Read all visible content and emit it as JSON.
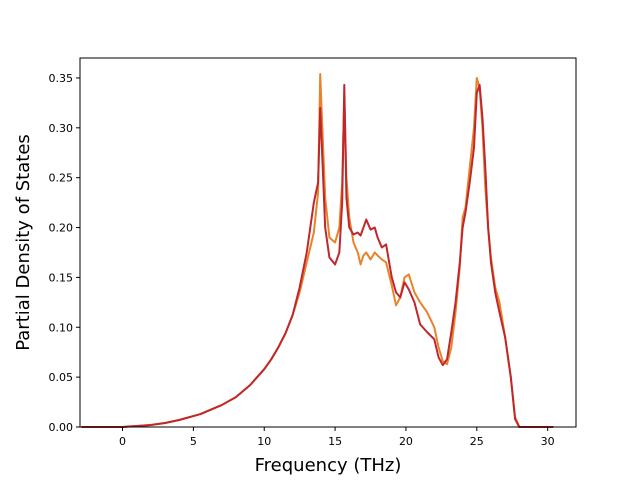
{
  "chart_data": {
    "type": "line",
    "title": "",
    "xlabel": "Frequency (THz)",
    "ylabel": "Partial Density of States",
    "xlim": [
      -3,
      32
    ],
    "ylim": [
      0,
      0.37
    ],
    "xticks": [
      0,
      5,
      10,
      15,
      20,
      25,
      30
    ],
    "yticks": [
      0.0,
      0.05,
      0.1,
      0.15,
      0.2,
      0.25,
      0.3,
      0.35
    ],
    "xtick_labels": [
      "0",
      "5",
      "10",
      "15",
      "20",
      "25",
      "30"
    ],
    "ytick_labels": [
      "0.00",
      "0.05",
      "0.10",
      "0.15",
      "0.20",
      "0.25",
      "0.30",
      "0.35"
    ],
    "grid": false,
    "legend": "none",
    "series": [
      {
        "color": "#e8832a",
        "x": [
          -2.9,
          0,
          1,
          2,
          3,
          4,
          4.5,
          5,
          5.5,
          6,
          7,
          8,
          9,
          10,
          10.5,
          11,
          11.5,
          12,
          12.5,
          13,
          13.5,
          13.8,
          13.95,
          14.1,
          14.3,
          14.6,
          15,
          15.3,
          15.5,
          15.65,
          15.8,
          16,
          16.3,
          16.6,
          16.8,
          17,
          17.2,
          17.5,
          17.8,
          18,
          18.3,
          18.6,
          19,
          19.3,
          19.6,
          19.9,
          20.2,
          20.6,
          21,
          21.5,
          22,
          22.3,
          22.6,
          22.9,
          23.2,
          23.5,
          23.8,
          24,
          24.2,
          24.5,
          24.8,
          25,
          25.2,
          25.4,
          25.6,
          25.8,
          26,
          26.3,
          26.6,
          27,
          27.4,
          27.7,
          28,
          29,
          30,
          30.4
        ],
        "y": [
          0,
          0,
          0.001,
          0.002,
          0.004,
          0.007,
          0.009,
          0.011,
          0.013,
          0.016,
          0.022,
          0.03,
          0.042,
          0.058,
          0.068,
          0.08,
          0.094,
          0.112,
          0.135,
          0.165,
          0.195,
          0.235,
          0.354,
          0.3,
          0.23,
          0.19,
          0.185,
          0.2,
          0.245,
          0.33,
          0.25,
          0.21,
          0.185,
          0.175,
          0.163,
          0.172,
          0.175,
          0.168,
          0.175,
          0.172,
          0.168,
          0.165,
          0.142,
          0.122,
          0.13,
          0.15,
          0.153,
          0.135,
          0.125,
          0.115,
          0.1,
          0.08,
          0.066,
          0.063,
          0.08,
          0.115,
          0.16,
          0.21,
          0.22,
          0.26,
          0.3,
          0.35,
          0.34,
          0.3,
          0.24,
          0.2,
          0.17,
          0.14,
          0.125,
          0.09,
          0.05,
          0.01,
          0,
          0,
          0,
          0
        ]
      },
      {
        "color": "#c0272d",
        "x": [
          -2.9,
          0,
          1,
          2,
          3,
          4,
          4.5,
          5,
          5.5,
          6,
          7,
          8,
          9,
          10,
          10.5,
          11,
          11.5,
          12,
          12.5,
          13,
          13.5,
          13.8,
          13.95,
          14.1,
          14.3,
          14.6,
          15,
          15.3,
          15.5,
          15.65,
          15.8,
          16,
          16.3,
          16.6,
          16.8,
          17,
          17.2,
          17.5,
          17.8,
          18,
          18.3,
          18.6,
          19,
          19.3,
          19.6,
          19.9,
          20.2,
          20.6,
          21,
          21.5,
          22,
          22.3,
          22.6,
          22.9,
          23.2,
          23.5,
          23.8,
          24,
          24.2,
          24.5,
          24.8,
          25,
          25.2,
          25.4,
          25.6,
          25.8,
          26,
          26.3,
          26.6,
          27,
          27.4,
          27.7,
          28,
          29,
          30,
          30.4
        ],
        "y": [
          0,
          0,
          0.001,
          0.002,
          0.004,
          0.007,
          0.009,
          0.011,
          0.013,
          0.016,
          0.022,
          0.03,
          0.042,
          0.058,
          0.068,
          0.08,
          0.094,
          0.112,
          0.14,
          0.175,
          0.225,
          0.245,
          0.32,
          0.27,
          0.2,
          0.17,
          0.163,
          0.175,
          0.225,
          0.343,
          0.23,
          0.2,
          0.193,
          0.195,
          0.192,
          0.2,
          0.208,
          0.198,
          0.2,
          0.19,
          0.18,
          0.183,
          0.15,
          0.135,
          0.13,
          0.145,
          0.138,
          0.125,
          0.103,
          0.095,
          0.088,
          0.07,
          0.062,
          0.068,
          0.095,
          0.125,
          0.165,
          0.2,
          0.215,
          0.245,
          0.28,
          0.335,
          0.343,
          0.31,
          0.26,
          0.2,
          0.165,
          0.135,
          0.115,
          0.09,
          0.05,
          0.008,
          0,
          0,
          0,
          0
        ]
      }
    ]
  }
}
